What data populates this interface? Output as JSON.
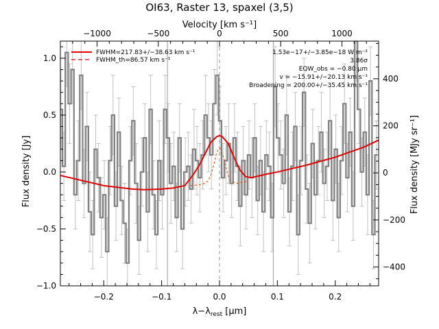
{
  "chart_data": {
    "type": "line",
    "title": "OI63, Raster 13, spaxel (3,5)",
    "xlabel_pre": "λ−λ",
    "xlabel_sub": "rest",
    "xlabel_post": " [μm]",
    "ylabel": "Flux density [Jy]",
    "top_label": "Velocity [km s⁻¹]",
    "right_label": "Flux density [MJy sr⁻¹]",
    "xlim": [
      -0.275,
      0.275
    ],
    "ylim": [
      -1.0,
      1.15
    ],
    "top_lim": [
      -1300,
      1300
    ],
    "right_lim": [
      -480,
      560
    ],
    "xticks": [
      -0.2,
      -0.1,
      0.0,
      0.1,
      0.2
    ],
    "xtick_labels": [
      "−0.2",
      "−0.1",
      "0.0",
      "0.1",
      "0.2"
    ],
    "yticks": [
      -1.0,
      -0.5,
      0.0,
      0.5,
      1.0
    ],
    "ytick_labels": [
      "−1.0",
      "−0.5",
      "0.0",
      "0.5",
      "1.0"
    ],
    "top_ticks": [
      -1000,
      -500,
      0,
      500,
      1000
    ],
    "top_tick_labels": [
      "−1000",
      "−500",
      "0",
      "500",
      "1000"
    ],
    "right_ticks": [
      -400,
      -200,
      0,
      200,
      400
    ],
    "right_tick_labels": [
      "−400",
      "−200",
      "0",
      "200",
      "400"
    ],
    "reference_lines": [
      {
        "x": -0.09,
        "style": "solid",
        "color": "#999999"
      },
      {
        "x": 0.0,
        "style": "dashed",
        "color": "#999999"
      },
      {
        "x": 0.093,
        "style": "solid",
        "color": "#999999"
      }
    ],
    "annotations": [
      "1.53e−17+/−3.85e−18 W m⁻²",
      "3.86σ",
      "EQW_obs = −0.80 μm",
      "v = −15.91+/−20.13 km s⁻¹",
      "Broadening = 200.00+/−35.45 km s⁻¹"
    ],
    "legend": [
      {
        "name": "FWHM=217.83+/−38.63 km s⁻¹",
        "color": "#e00000",
        "style": "solid"
      },
      {
        "name": "FWHM_th=86.57 km s⁻¹",
        "color": "#e00000",
        "style": "dashed"
      }
    ],
    "series": [
      {
        "name": "spectrum",
        "color": "#808080",
        "x": [
          -0.274,
          -0.269,
          -0.264,
          -0.259,
          -0.254,
          -0.249,
          -0.244,
          -0.239,
          -0.234,
          -0.229,
          -0.224,
          -0.219,
          -0.214,
          -0.209,
          -0.204,
          -0.199,
          -0.194,
          -0.189,
          -0.184,
          -0.179,
          -0.174,
          -0.169,
          -0.164,
          -0.159,
          -0.154,
          -0.149,
          -0.144,
          -0.139,
          -0.134,
          -0.129,
          -0.124,
          -0.119,
          -0.114,
          -0.109,
          -0.104,
          -0.099,
          -0.094,
          -0.089,
          -0.084,
          -0.079,
          -0.074,
          -0.069,
          -0.064,
          -0.059,
          -0.054,
          -0.049,
          -0.044,
          -0.039,
          -0.034,
          -0.029,
          -0.024,
          -0.019,
          -0.014,
          -0.009,
          -0.004,
          0.001,
          0.006,
          0.011,
          0.016,
          0.021,
          0.026,
          0.031,
          0.036,
          0.041,
          0.046,
          0.051,
          0.056,
          0.061,
          0.066,
          0.071,
          0.076,
          0.081,
          0.086,
          0.091,
          0.096,
          0.101,
          0.106,
          0.111,
          0.116,
          0.121,
          0.126,
          0.131,
          0.136,
          0.141,
          0.146,
          0.151,
          0.156,
          0.161,
          0.166,
          0.171,
          0.176,
          0.181,
          0.186,
          0.191,
          0.196,
          0.201,
          0.206,
          0.211,
          0.216,
          0.221,
          0.226,
          0.231,
          0.236,
          0.241,
          0.246,
          0.251,
          0.256,
          0.261,
          0.266,
          0.271
        ],
        "y": [
          0.55,
          0.05,
          1.05,
          0.6,
          0.9,
          -0.2,
          0.1,
          0.85,
          -0.1,
          0.4,
          -0.35,
          -0.55,
          0.2,
          -0.05,
          -0.4,
          -0.2,
          -0.7,
          0.1,
          0.5,
          -0.3,
          0.35,
          -0.25,
          -0.45,
          -0.8,
          0.1,
          0.45,
          -0.1,
          -0.6,
          0.0,
          0.3,
          -0.35,
          0.55,
          -0.2,
          -0.55,
          0.1,
          -0.2,
          0.55,
          0.3,
          -0.1,
          0.05,
          -0.4,
          0.3,
          -0.5,
          0.0,
          0.05,
          -0.15,
          0.2,
          0.1,
          -0.05,
          0.15,
          0.5,
          0.3,
          0.15,
          0.6,
          0.85,
          0.45,
          -0.05,
          0.1,
          0.25,
          -0.1,
          0.3,
          0.05,
          -0.3,
          0.1,
          -0.2,
          0.15,
          -0.05,
          0.3,
          -0.25,
          0.1,
          -0.35,
          0.15,
          0.05,
          -0.4,
          0.75,
          0.3,
          0.15,
          -0.1,
          0.5,
          -0.35,
          0.05,
          0.4,
          -0.55,
          0.1,
          0.7,
          -0.15,
          -0.45,
          0.25,
          -0.2,
          0.1,
          0.35,
          -0.1,
          0.05,
          0.45,
          -0.25,
          0.2,
          -0.4,
          0.1,
          0.6,
          -0.05,
          0.35,
          -0.3,
          1.15,
          0.55,
          0.0,
          0.35,
          -0.2,
          0.8,
          -0.55,
          0.15
        ],
        "err": [
          0.35,
          0.3,
          0.3,
          0.35,
          0.3,
          0.3,
          0.35,
          0.3,
          0.3,
          0.3,
          0.35,
          0.3,
          0.3,
          0.3,
          0.35,
          0.3,
          0.3,
          0.3,
          0.35,
          0.3,
          0.3,
          0.3,
          0.35,
          0.3,
          0.3,
          0.3,
          0.35,
          0.3,
          0.3,
          0.3,
          0.35,
          0.3,
          0.3,
          0.3,
          0.35,
          0.3,
          0.3,
          0.3,
          0.35,
          0.3,
          0.3,
          0.3,
          0.35,
          0.3,
          0.3,
          0.3,
          0.35,
          0.3,
          0.3,
          0.3,
          0.35,
          0.3,
          0.3,
          0.3,
          0.35,
          0.3,
          0.3,
          0.3,
          0.35,
          0.3,
          0.3,
          0.3,
          0.35,
          0.3,
          0.3,
          0.3,
          0.35,
          0.3,
          0.3,
          0.3,
          0.35,
          0.3,
          0.3,
          0.3,
          0.35,
          0.3,
          0.3,
          0.3,
          0.35,
          0.3,
          0.3,
          0.3,
          0.35,
          0.3,
          0.3,
          0.3,
          0.35,
          0.3,
          0.3,
          0.3,
          0.35,
          0.3,
          0.3,
          0.3,
          0.35,
          0.3,
          0.3,
          0.3,
          0.35,
          0.3,
          0.3,
          0.3,
          0.35,
          0.3,
          0.3,
          0.3,
          0.35,
          0.3,
          0.3,
          0.3
        ]
      },
      {
        "name": "fit",
        "color": "#e00000",
        "style": "solid",
        "x": [
          -0.275,
          -0.25,
          -0.2,
          -0.15,
          -0.13,
          -0.1,
          -0.08,
          -0.06,
          -0.045,
          -0.035,
          -0.025,
          -0.015,
          -0.005,
          0.0,
          0.005,
          0.015,
          0.025,
          0.035,
          0.045,
          0.055,
          0.08,
          0.1,
          0.15,
          0.2,
          0.25,
          0.275
        ],
        "y": [
          -0.03,
          -0.06,
          -0.12,
          -0.15,
          -0.155,
          -0.15,
          -0.14,
          -0.12,
          -0.02,
          0.06,
          0.16,
          0.26,
          0.31,
          0.32,
          0.31,
          0.25,
          0.13,
          0.02,
          -0.04,
          -0.05,
          -0.02,
          0.0,
          0.06,
          0.13,
          0.22,
          0.28
        ]
      },
      {
        "name": "thermal",
        "color": "#e05000",
        "style": "dashed",
        "x": [
          -0.05,
          -0.03,
          -0.02,
          -0.015,
          -0.01,
          -0.006,
          -0.002,
          0.0,
          0.002,
          0.006,
          0.01,
          0.015,
          0.02,
          0.03,
          0.05
        ],
        "y": [
          -0.12,
          -0.11,
          -0.08,
          -0.03,
          0.06,
          0.15,
          0.2,
          0.21,
          0.2,
          0.15,
          0.06,
          -0.03,
          -0.08,
          -0.1,
          -0.08
        ]
      }
    ]
  }
}
